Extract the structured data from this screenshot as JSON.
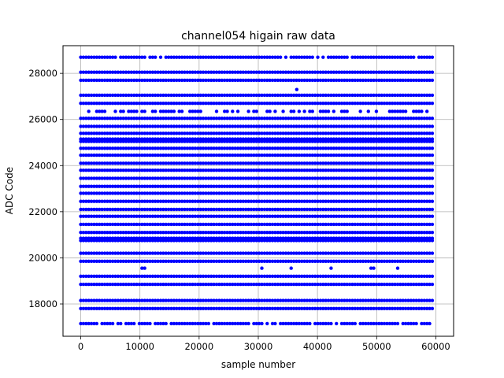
{
  "chart_data": {
    "type": "scatter",
    "title": "channel054 higain raw data",
    "xlabel": "sample number",
    "ylabel": "ADC Code",
    "xlim": [
      -3000,
      63000
    ],
    "ylim": [
      16600,
      29200
    ],
    "x_ticks": [
      0,
      10000,
      20000,
      30000,
      40000,
      50000,
      60000
    ],
    "y_ticks": [
      18000,
      20000,
      22000,
      24000,
      26000,
      28000
    ],
    "x_tick_labels": [
      "0",
      "10000",
      "20000",
      "30000",
      "40000",
      "50000",
      "60000"
    ],
    "y_tick_labels": [
      "18000",
      "20000",
      "22000",
      "24000",
      "26000",
      "28000"
    ],
    "grid": true,
    "marker_color": "#0000ff",
    "sample_range": [
      0,
      59600
    ],
    "series": [
      {
        "levels": [
          {
            "y": 28700,
            "density": 0.9
          },
          {
            "y": 28050,
            "density": 1.0
          },
          {
            "y": 27700,
            "density": 1.0
          },
          {
            "y": 27050,
            "density": 1.0
          },
          {
            "y": 26700,
            "density": 1.0
          },
          {
            "y": 26350,
            "density": 0.5
          },
          {
            "y": 26050,
            "density": 1.0
          },
          {
            "y": 25700,
            "density": 1.0
          },
          {
            "y": 25400,
            "density": 1.0
          },
          {
            "y": 25150,
            "density": 1.0
          },
          {
            "y": 25050,
            "density": 1.0
          },
          {
            "y": 24750,
            "density": 1.0
          },
          {
            "y": 24450,
            "density": 1.0
          },
          {
            "y": 24100,
            "density": 1.0
          },
          {
            "y": 23800,
            "density": 1.0
          },
          {
            "y": 23450,
            "density": 1.0
          },
          {
            "y": 23100,
            "density": 1.0
          },
          {
            "y": 22800,
            "density": 1.0
          },
          {
            "y": 22450,
            "density": 1.0
          },
          {
            "y": 22100,
            "density": 1.0
          },
          {
            "y": 21800,
            "density": 1.0
          },
          {
            "y": 21450,
            "density": 1.0
          },
          {
            "y": 21100,
            "density": 1.0
          },
          {
            "y": 20850,
            "density": 1.0
          },
          {
            "y": 20750,
            "density": 1.0
          },
          {
            "y": 20200,
            "density": 1.0
          },
          {
            "y": 19850,
            "density": 1.0
          },
          {
            "y": 19550,
            "density": 0.1
          },
          {
            "y": 19200,
            "density": 1.0
          },
          {
            "y": 18850,
            "density": 1.0
          },
          {
            "y": 18150,
            "density": 1.0
          },
          {
            "y": 17800,
            "density": 1.0
          },
          {
            "y": 17150,
            "density": 0.85
          }
        ],
        "outliers": [
          {
            "x": 36500,
            "y": 27300
          }
        ]
      }
    ]
  }
}
